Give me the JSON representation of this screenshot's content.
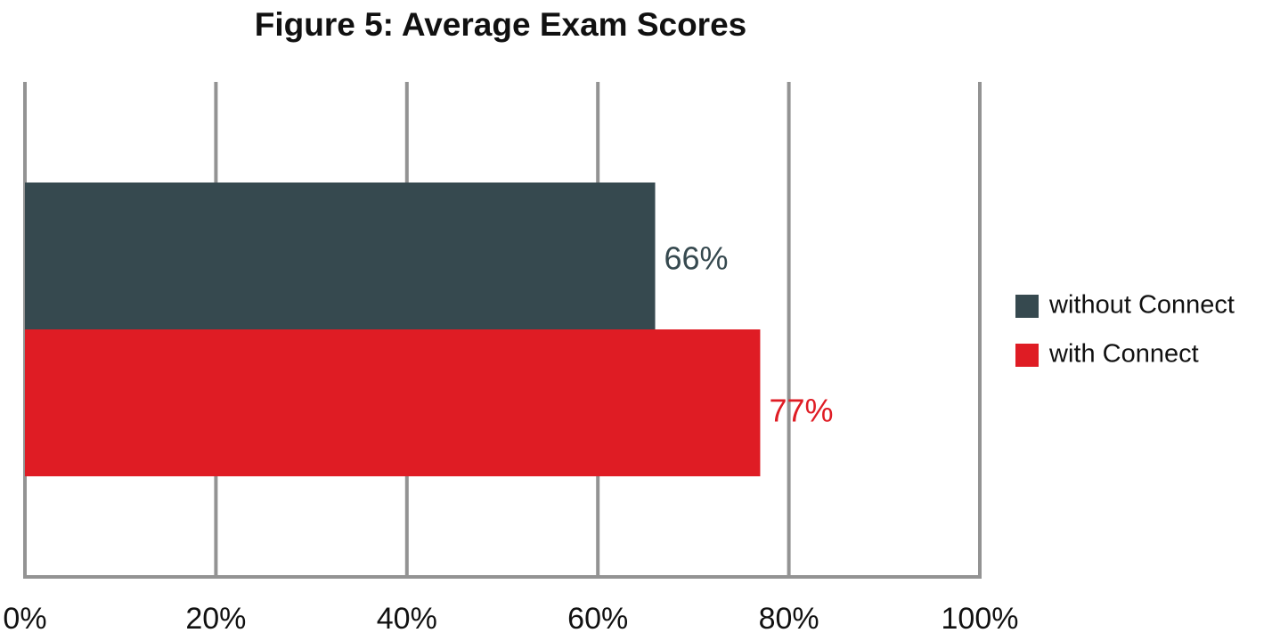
{
  "chart_data": {
    "type": "hbar",
    "title": "Figure 5: Average Exam Scores",
    "categories": [
      null
    ],
    "series": [
      {
        "name": "without Connect",
        "color": "#36494f",
        "values": [
          66
        ],
        "value_labels": [
          "66%"
        ]
      },
      {
        "name": "with Connect",
        "color": "#df1c24",
        "values": [
          77
        ],
        "value_labels": [
          "77%"
        ]
      }
    ],
    "xlim": [
      0,
      100
    ],
    "xticks": [
      {
        "value": 0,
        "label": "0%"
      },
      {
        "value": 20,
        "label": "20%"
      },
      {
        "value": 40,
        "label": "40%"
      },
      {
        "value": 60,
        "label": "60%"
      },
      {
        "value": 80,
        "label": "80%"
      },
      {
        "value": 100,
        "label": "100%"
      }
    ],
    "grid": true,
    "legend": "right"
  }
}
